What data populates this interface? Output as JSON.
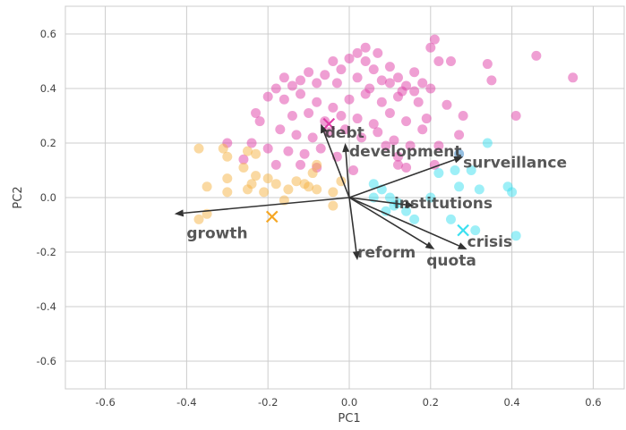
{
  "chart_data": {
    "type": "scatter",
    "title": "",
    "xlabel": "PC1",
    "ylabel": "PC2",
    "xlim": [
      -0.7,
      0.7
    ],
    "ylim": [
      -0.7,
      0.7
    ],
    "x_ticks": [
      "-0.6",
      "-0.4",
      "-0.2",
      "0.0",
      "0.2",
      "0.4",
      "0.6"
    ],
    "y_ticks": [
      "-0.6",
      "-0.4",
      "-0.2",
      "0.0",
      "0.2",
      "0.4",
      "0.6"
    ],
    "grid": true,
    "series": [
      {
        "color": "#e040a8",
        "points": [
          [
            -0.16,
            0.44
          ],
          [
            -0.14,
            0.41
          ],
          [
            -0.12,
            0.43
          ],
          [
            -0.1,
            0.46
          ],
          [
            -0.08,
            0.42
          ],
          [
            -0.06,
            0.45
          ],
          [
            -0.04,
            0.5
          ],
          [
            -0.02,
            0.47
          ],
          [
            0.0,
            0.51
          ],
          [
            0.02,
            0.44
          ],
          [
            0.04,
            0.5
          ],
          [
            0.06,
            0.47
          ],
          [
            0.08,
            0.43
          ],
          [
            0.1,
            0.48
          ],
          [
            0.12,
            0.44
          ],
          [
            0.14,
            0.41
          ],
          [
            0.16,
            0.46
          ],
          [
            0.18,
            0.42
          ],
          [
            0.2,
            0.55
          ],
          [
            0.22,
            0.5
          ],
          [
            0.02,
            0.53
          ],
          [
            0.04,
            0.55
          ],
          [
            0.07,
            0.53
          ],
          [
            0.21,
            0.58
          ],
          [
            0.25,
            0.5
          ],
          [
            0.34,
            0.49
          ],
          [
            0.46,
            0.52
          ],
          [
            0.55,
            0.44
          ],
          [
            -0.18,
            0.4
          ],
          [
            -0.2,
            0.37
          ],
          [
            -0.16,
            0.36
          ],
          [
            -0.12,
            0.38
          ],
          [
            -0.08,
            0.35
          ],
          [
            -0.04,
            0.33
          ],
          [
            0.0,
            0.36
          ],
          [
            0.04,
            0.38
          ],
          [
            0.08,
            0.35
          ],
          [
            0.12,
            0.37
          ],
          [
            0.16,
            0.39
          ],
          [
            0.2,
            0.4
          ],
          [
            -0.14,
            0.3
          ],
          [
            -0.1,
            0.31
          ],
          [
            -0.06,
            0.28
          ],
          [
            -0.02,
            0.3
          ],
          [
            0.02,
            0.29
          ],
          [
            0.06,
            0.27
          ],
          [
            0.1,
            0.31
          ],
          [
            0.14,
            0.28
          ],
          [
            0.18,
            0.25
          ],
          [
            -0.22,
            0.28
          ],
          [
            -0.17,
            0.25
          ],
          [
            -0.13,
            0.23
          ],
          [
            -0.09,
            0.22
          ],
          [
            -0.05,
            0.24
          ],
          [
            -0.01,
            0.25
          ],
          [
            0.03,
            0.22
          ],
          [
            0.07,
            0.24
          ],
          [
            0.11,
            0.21
          ],
          [
            0.15,
            0.19
          ],
          [
            -0.24,
            0.2
          ],
          [
            -0.2,
            0.18
          ],
          [
            -0.15,
            0.17
          ],
          [
            -0.11,
            0.16
          ],
          [
            -0.07,
            0.18
          ],
          [
            -0.03,
            0.15
          ],
          [
            0.12,
            0.15
          ],
          [
            0.22,
            0.19
          ],
          [
            0.28,
            0.3
          ],
          [
            0.35,
            0.43
          ],
          [
            0.41,
            0.3
          ],
          [
            -0.3,
            0.2
          ],
          [
            -0.26,
            0.14
          ],
          [
            -0.18,
            0.12
          ],
          [
            -0.12,
            0.12
          ],
          [
            0.09,
            0.19
          ],
          [
            0.14,
            0.11
          ],
          [
            0.21,
            0.12
          ],
          [
            0.27,
            0.23
          ],
          [
            0.05,
            0.4
          ],
          [
            -0.03,
            0.42
          ],
          [
            0.17,
            0.35
          ],
          [
            0.24,
            0.34
          ],
          [
            -0.23,
            0.31
          ],
          [
            0.12,
            0.12
          ],
          [
            0.01,
            0.1
          ],
          [
            -0.08,
            0.11
          ],
          [
            0.19,
            0.29
          ],
          [
            0.27,
            0.16
          ],
          [
            0.1,
            0.42
          ],
          [
            0.13,
            0.39
          ]
        ]
      },
      {
        "color": "#f5b445",
        "points": [
          [
            -0.37,
            0.18
          ],
          [
            -0.31,
            0.18
          ],
          [
            -0.3,
            0.15
          ],
          [
            -0.25,
            0.17
          ],
          [
            -0.23,
            0.16
          ],
          [
            -0.26,
            0.11
          ],
          [
            -0.23,
            0.08
          ],
          [
            -0.24,
            0.05
          ],
          [
            -0.3,
            0.07
          ],
          [
            -0.2,
            0.07
          ],
          [
            -0.18,
            0.05
          ],
          [
            -0.13,
            0.06
          ],
          [
            -0.15,
            0.03
          ],
          [
            -0.1,
            0.04
          ],
          [
            -0.08,
            0.03
          ],
          [
            -0.04,
            0.02
          ],
          [
            -0.02,
            0.06
          ],
          [
            -0.21,
            0.02
          ],
          [
            -0.25,
            0.03
          ],
          [
            -0.3,
            0.02
          ],
          [
            -0.35,
            0.04
          ],
          [
            -0.37,
            -0.08
          ],
          [
            -0.35,
            -0.06
          ],
          [
            -0.08,
            0.12
          ],
          [
            -0.09,
            0.09
          ],
          [
            -0.04,
            -0.03
          ],
          [
            -0.11,
            0.05
          ],
          [
            -0.16,
            -0.01
          ]
        ]
      },
      {
        "color": "#3ce0f0",
        "points": [
          [
            0.34,
            0.2
          ],
          [
            0.27,
            0.16
          ],
          [
            0.3,
            0.1
          ],
          [
            0.26,
            0.1
          ],
          [
            0.22,
            0.09
          ],
          [
            0.27,
            0.04
          ],
          [
            0.32,
            0.03
          ],
          [
            0.39,
            0.04
          ],
          [
            0.4,
            0.02
          ],
          [
            0.06,
            0.05
          ],
          [
            0.08,
            0.03
          ],
          [
            0.1,
            0.0
          ],
          [
            0.12,
            -0.02
          ],
          [
            0.14,
            -0.05
          ],
          [
            0.11,
            -0.03
          ],
          [
            0.09,
            -0.05
          ],
          [
            0.16,
            -0.08
          ],
          [
            0.25,
            -0.08
          ],
          [
            0.31,
            -0.12
          ],
          [
            0.41,
            -0.14
          ],
          [
            0.2,
            0.0
          ],
          [
            0.06,
            0.0
          ]
        ]
      }
    ],
    "centroids": [
      {
        "x": -0.19,
        "y": -0.07,
        "color": "#f5a623"
      },
      {
        "x": 0.28,
        "y": -0.12,
        "color": "#3ce0f0"
      },
      {
        "x": -0.05,
        "y": 0.27,
        "color": "#e040a8"
      }
    ],
    "loadings": [
      {
        "label": "debt",
        "x": -0.07,
        "y": 0.27,
        "lx": -0.06,
        "ly": 0.24
      },
      {
        "label": "development",
        "x": -0.01,
        "y": 0.2,
        "lx": 0.0,
        "ly": 0.17
      },
      {
        "label": "surveillance",
        "x": 0.28,
        "y": 0.15,
        "lx": 0.28,
        "ly": 0.13
      },
      {
        "label": "institutions",
        "x": 0.16,
        "y": -0.03,
        "lx": 0.11,
        "ly": -0.02
      },
      {
        "label": "growth",
        "x": -0.43,
        "y": -0.06,
        "lx": -0.4,
        "ly": -0.13
      },
      {
        "label": "reform",
        "x": 0.02,
        "y": -0.23,
        "lx": 0.02,
        "ly": -0.2
      },
      {
        "label": "crisis",
        "x": 0.29,
        "y": -0.19,
        "lx": 0.29,
        "ly": -0.16
      },
      {
        "label": "quota",
        "x": 0.21,
        "y": -0.19,
        "lx": 0.19,
        "ly": -0.23
      }
    ]
  }
}
